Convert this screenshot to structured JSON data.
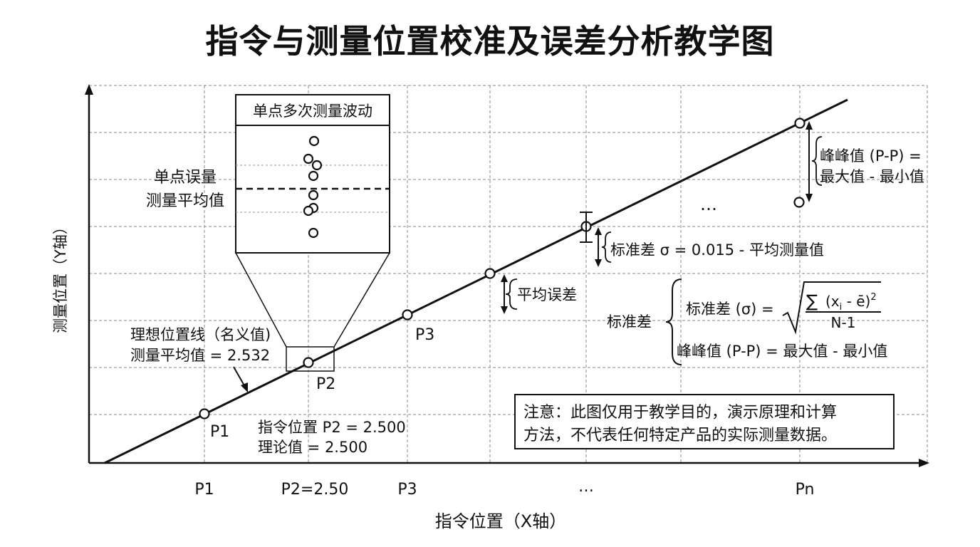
{
  "title": "指令与测量位置校准及误差分析教学图",
  "axes": {
    "y_label": "测量位置（Y轴）",
    "x_label": "指令位置（X轴）",
    "x_ticks": [
      "P1",
      "P2=2.50",
      "P3",
      "…",
      "Pn"
    ]
  },
  "points": {
    "p1": "P1",
    "p2": "P2",
    "p3": "P3",
    "ellipsis": "…"
  },
  "ideal_line": {
    "label_line1": "理想位置线（名义值)",
    "label_line2": "测量平均值 = 2.532"
  },
  "p2_annotation": {
    "line1": "指令位置 P2 = 2.500",
    "line2": "理论值 = 2.500"
  },
  "inset": {
    "title": "单点多次测量波动",
    "side_label_line1": "单点误量",
    "side_label_line2": "测量平均值"
  },
  "annotations": {
    "avg_error": "平均误差",
    "std_dev": "标准差 σ = 0.015 - 平均测量值",
    "pp_line1": "峰峰值 (P-P) =",
    "pp_line2": "最大值 - 最小值"
  },
  "formula": {
    "group_label": "标准差",
    "std_lhs": "标准差 (σ) =",
    "numerator_sum": "∑",
    "numerator_expr": "(x",
    "numerator_sub": "i",
    "numerator_rest": " - ē)",
    "numerator_sup": "2",
    "denominator": "N-1",
    "pp_formula": "峰峰值 (P-P) = 最大值 - 最小值"
  },
  "note": {
    "line1": "注意：此图仅用于教学目的，演示原理和计算",
    "line2": "方法，不代表任何特定产品的实际测量数据。"
  }
}
